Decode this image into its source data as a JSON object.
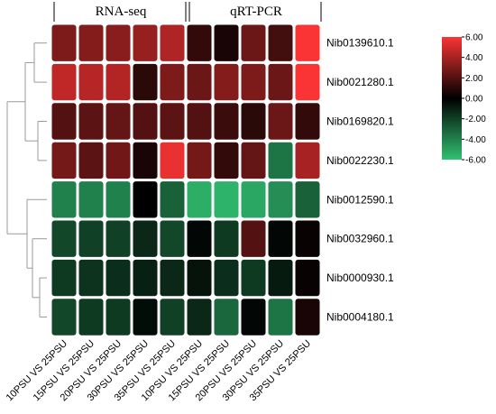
{
  "chart_data": {
    "type": "heatmap",
    "column_groups": [
      {
        "label": "RNA-seq",
        "columns": 5
      },
      {
        "label": "qRT-PCR",
        "columns": 5
      }
    ],
    "columns": [
      "10PSU VS 25PSU",
      "15PSU VS 25PSU",
      "20PSU VS 25PSU",
      "30PSU VS 25PSU",
      "35PSU VS 25PSU",
      "10PSU VS 25PSU",
      "15PSU VS 25PSU",
      "20PSU VS 25PSU",
      "30PSU VS 25PSU",
      "35PSU VS 25PSU"
    ],
    "rows": [
      "Nib0139610.1",
      "Nib0021280.1",
      "Nib0169820.1",
      "Nib0022230.1",
      "Nib0012590.1",
      "Nib0032960.1",
      "Nib0000930.1",
      "Nib0004180.1"
    ],
    "values": [
      [
        3.0,
        3.2,
        3.3,
        3.6,
        4.2,
        1.2,
        0.6,
        2.6,
        1.6,
        6.0
      ],
      [
        4.6,
        4.4,
        4.3,
        1.0,
        3.0,
        2.6,
        3.2,
        3.0,
        2.6,
        6.0
      ],
      [
        2.0,
        2.2,
        2.4,
        2.0,
        2.2,
        2.0,
        1.4,
        1.0,
        2.6,
        1.2
      ],
      [
        2.8,
        2.2,
        2.7,
        0.6,
        5.6,
        2.8,
        1.2,
        2.4,
        -3.6,
        4.0
      ],
      [
        -4.0,
        -4.0,
        -4.0,
        0.0,
        -3.0,
        -5.4,
        -5.6,
        -5.2,
        -4.4,
        -3.0
      ],
      [
        -2.2,
        -2.0,
        -2.0,
        -1.2,
        -2.2,
        -0.2,
        -1.8,
        2.0,
        -0.2,
        0.2
      ],
      [
        -1.8,
        -1.6,
        -1.4,
        -1.0,
        -1.2,
        -0.6,
        -1.4,
        -1.8,
        -0.8,
        0.2
      ],
      [
        -2.2,
        -1.8,
        -1.8,
        -0.4,
        -2.0,
        -1.2,
        -3.2,
        -0.2,
        -3.6,
        0.6
      ]
    ],
    "colorbar": {
      "ticks": [
        "6.00",
        "4.00",
        "2.00",
        "0.00",
        "-2.00",
        "-4.00",
        "-6.00"
      ],
      "range": [
        -6,
        6
      ],
      "colors": {
        "high": "#fa3434",
        "mid": "#000000",
        "low": "#31c172"
      }
    },
    "dendrogram": {
      "side": "left",
      "rows_clustered": true
    }
  }
}
